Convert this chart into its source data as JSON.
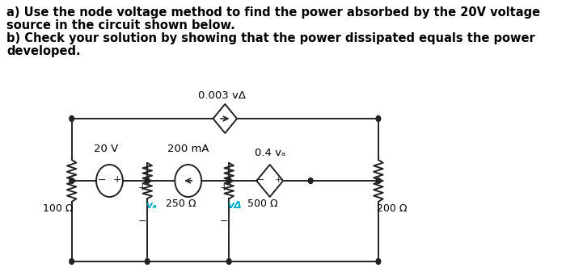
{
  "text_a": "a) Use the node voltage method to find the power absorbed by the 20V voltage",
  "text_b": "source in the circuit shown below.",
  "text_c": "b) Check your solution by showing that the power dissipated equals the power",
  "text_d": "developed.",
  "label_dep_cs": "0.003 vΔ",
  "label_vs": "20 V",
  "label_cs": "200 mA",
  "label_dep_vs": "0.4 vₐ",
  "label_r1": "100 Ω",
  "label_r2": "250 Ω",
  "label_r3": "500 Ω",
  "label_r4": "200 Ω",
  "label_va": "vₐ",
  "label_vdelta": "vΔ",
  "text_color": "#000000",
  "cyan_color": "#00aacc",
  "bg_color": "#ffffff",
  "figsize": [
    7.0,
    3.42
  ],
  "dpi": 100
}
